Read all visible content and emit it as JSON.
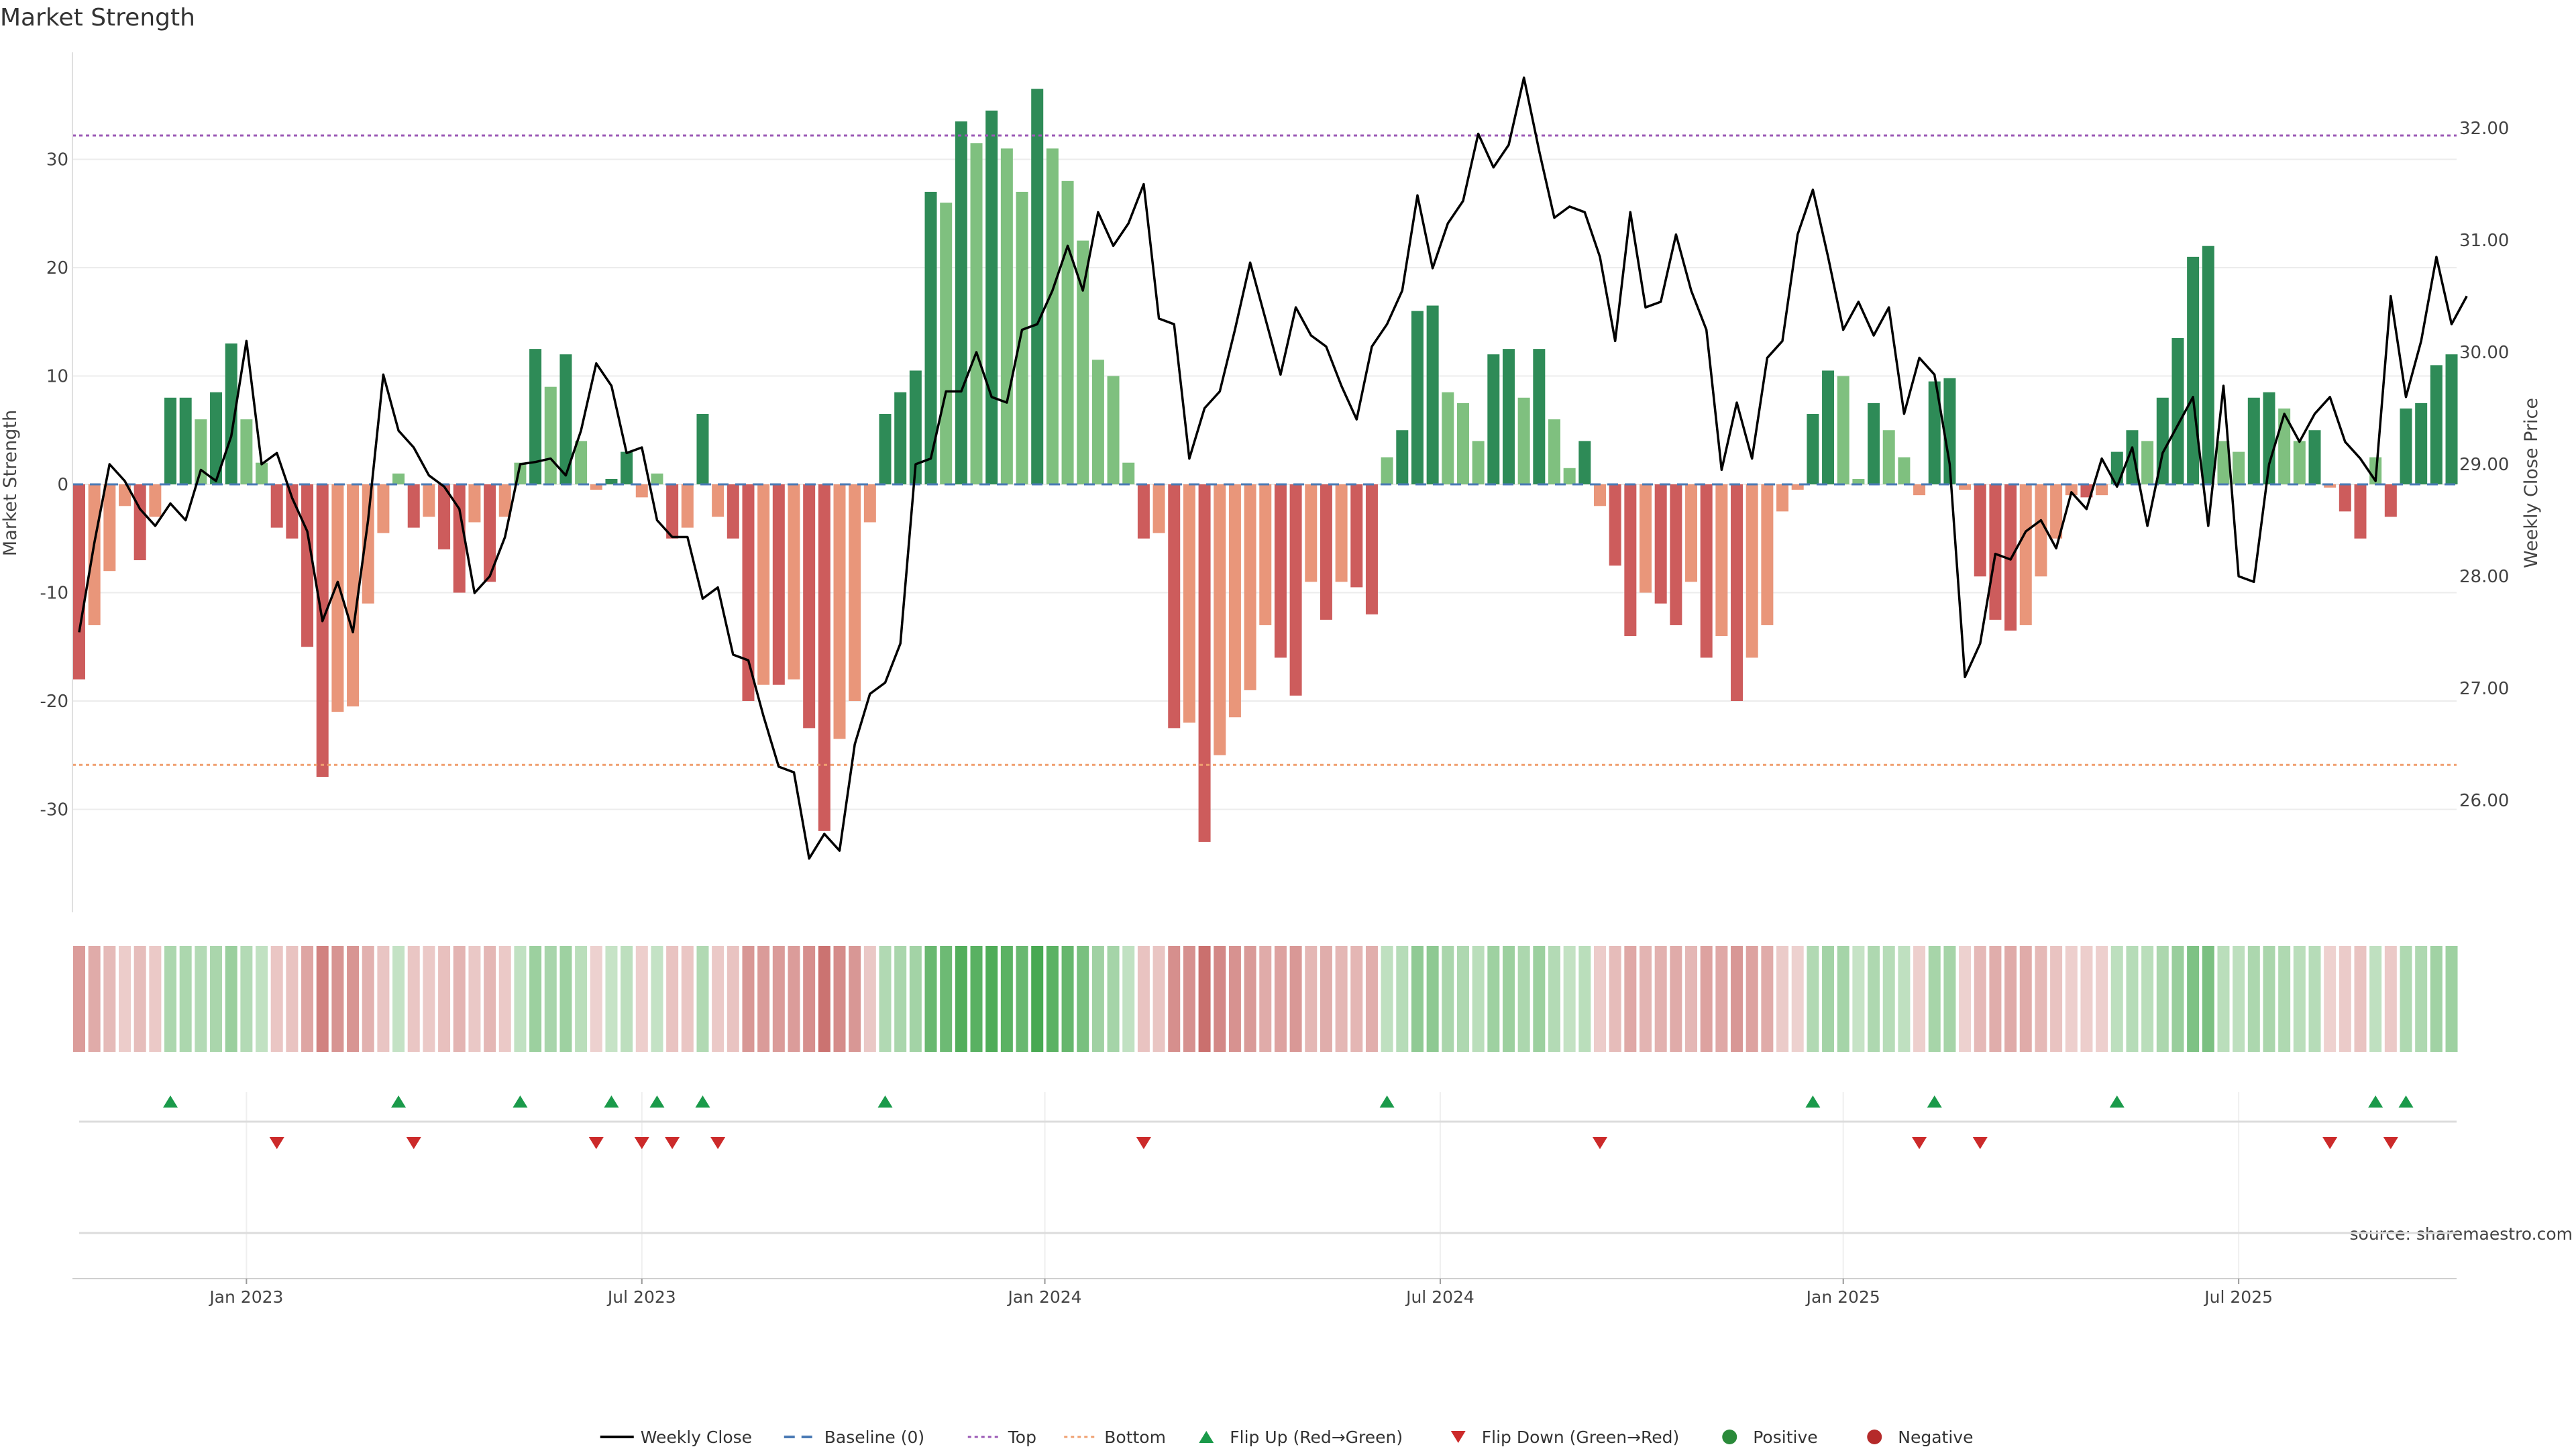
{
  "chart_data": {
    "type": "bar",
    "title": "Market Strength",
    "ylabel": "Market Strength",
    "y2label": "Weekly Close Price",
    "source": "source: sharemaestro.com",
    "ylim": [
      -39,
      40
    ],
    "y2lim": [
      25.19,
      32.9
    ],
    "yticks": [
      -30,
      -20,
      -10,
      0,
      10,
      20,
      30
    ],
    "y2ticks": [
      "26.00",
      "27.00",
      "28.00",
      "29.00",
      "30.00",
      "31.00",
      "32.00"
    ],
    "top_line": 32.2,
    "bottom_line": -25.9,
    "x_ticks": [
      {
        "label": "Jan 2023",
        "week": 11
      },
      {
        "label": "Jul 2023",
        "week": 37
      },
      {
        "label": "Jan 2024",
        "week": 63.5
      },
      {
        "label": "Jul 2024",
        "week": 89.5
      },
      {
        "label": "Jan 2025",
        "week": 116
      },
      {
        "label": "Jul 2025",
        "week": 142
      }
    ],
    "strength": [
      -18,
      -13,
      -8,
      -2,
      -7,
      -3,
      8,
      8,
      6,
      8.5,
      13,
      6,
      2,
      -4,
      -5,
      -15,
      -27,
      -21,
      -20.5,
      -11,
      -4.5,
      1,
      -4,
      -3,
      -6,
      -10,
      -3.5,
      -9,
      -3,
      2,
      12.5,
      9,
      12,
      4,
      -0.5,
      0.5,
      3,
      -1.2,
      1,
      -5,
      -4,
      6.5,
      -3,
      -5,
      -20,
      -18.5,
      -18.5,
      -18,
      -22.5,
      -32,
      -23.5,
      -20,
      -3.5,
      6.5,
      8.5,
      10.5,
      27,
      26,
      33.5,
      31.5,
      34.5,
      31,
      27,
      36.5,
      31,
      28,
      22.5,
      11.5,
      10,
      2,
      -5,
      -4.5,
      -22.5,
      -22,
      -33,
      -25,
      -21.5,
      -19,
      -13,
      -16,
      -19.5,
      -9,
      -12.5,
      -9,
      -9.5,
      -12,
      2.5,
      5,
      16,
      16.5,
      8.5,
      7.5,
      4,
      12,
      12.5,
      8,
      12.5,
      6,
      1.5,
      4,
      -2,
      -7.5,
      -14,
      -10,
      -11,
      -13,
      -9,
      -16,
      -14,
      -20,
      -16,
      -13,
      -2.5,
      -0.5,
      6.5,
      10.5,
      10,
      0.5,
      7.5,
      5,
      2.5,
      -1,
      9.5,
      9.8,
      -0.5,
      -8.5,
      -12.5,
      -13.5,
      -13,
      -8.5,
      -5,
      -1,
      -1.2,
      -1,
      3,
      5,
      4,
      8,
      13.5,
      21,
      22,
      4,
      3,
      8,
      8.5,
      7,
      4,
      5,
      -0.3,
      -2.5,
      -5,
      2.5,
      -3,
      7,
      7.5,
      11,
      12
    ],
    "close": [
      27.5,
      28.3,
      29.0,
      28.85,
      28.6,
      28.45,
      28.65,
      28.5,
      28.95,
      28.85,
      29.25,
      30.1,
      29.0,
      29.1,
      28.7,
      28.4,
      27.6,
      27.95,
      27.5,
      28.5,
      29.8,
      29.3,
      29.15,
      28.9,
      28.8,
      28.6,
      27.85,
      28.0,
      28.35,
      29.0,
      29.02,
      29.05,
      28.9,
      29.3,
      29.9,
      29.7,
      29.1,
      29.15,
      28.5,
      28.35,
      28.35,
      27.8,
      27.9,
      27.3,
      27.25,
      26.75,
      26.3,
      26.25,
      25.48,
      25.7,
      25.55,
      26.5,
      26.95,
      27.05,
      27.4,
      29.0,
      29.05,
      29.65,
      29.65,
      30.0,
      29.6,
      29.55,
      30.2,
      30.25,
      30.55,
      30.95,
      30.55,
      31.25,
      30.95,
      31.15,
      31.5,
      30.3,
      30.25,
      29.05,
      29.5,
      29.65,
      30.2,
      30.8,
      30.3,
      29.8,
      30.4,
      30.15,
      30.05,
      29.7,
      29.4,
      30.05,
      30.25,
      30.55,
      31.4,
      30.75,
      31.15,
      31.35,
      31.95,
      31.65,
      31.85,
      32.45,
      31.8,
      31.2,
      31.3,
      31.25,
      30.85,
      30.1,
      31.25,
      30.4,
      30.45,
      31.05,
      30.55,
      30.2,
      28.95,
      29.55,
      29.05,
      29.95,
      30.1,
      31.05,
      31.45,
      30.85,
      30.2,
      30.45,
      30.15,
      30.4,
      29.45,
      29.95,
      29.8,
      29.0,
      27.1,
      27.4,
      28.2,
      28.15,
      28.4,
      28.5,
      28.25,
      28.75,
      28.6,
      29.05,
      28.8,
      29.15,
      28.45,
      29.1,
      29.35,
      29.6,
      28.45,
      29.7,
      28.0,
      27.95,
      29.0,
      29.45,
      29.2,
      29.45,
      29.6,
      29.2,
      29.05,
      28.85,
      30.5,
      29.6,
      30.1,
      30.85,
      30.25,
      30.5
    ],
    "flip_up": [
      6,
      21,
      29,
      35,
      38,
      41,
      53,
      86,
      114,
      122,
      134,
      151,
      153
    ],
    "flip_down": [
      13,
      22,
      34,
      37,
      39,
      42,
      70,
      100,
      121,
      125,
      148,
      152
    ],
    "legend": [
      {
        "label": "Weekly Close",
        "symbol": "line",
        "color": "#000000"
      },
      {
        "label": "Baseline (0)",
        "symbol": "dash",
        "color": "#4a7ab5"
      },
      {
        "label": "Top",
        "symbol": "dot",
        "color": "#9b59b6"
      },
      {
        "label": "Bottom",
        "symbol": "dot",
        "color": "#f0a070"
      },
      {
        "label": "Flip Up (Red→Green)",
        "symbol": "tri-up",
        "color": "#1a9a4a"
      },
      {
        "label": "Flip Down (Green→Red)",
        "symbol": "tri-down",
        "color": "#cc2a2a"
      },
      {
        "label": "Positive",
        "symbol": "circle",
        "color": "#2a8a3a"
      },
      {
        "label": "Negative",
        "symbol": "circle",
        "color": "#b52a2a"
      }
    ],
    "colors": {
      "pos_strong": "#2e8b57",
      "pos_light": "#7fc07f",
      "neg_strong": "#cd5c5c",
      "neg_light": "#e9967a",
      "grid": "#ececec"
    }
  }
}
